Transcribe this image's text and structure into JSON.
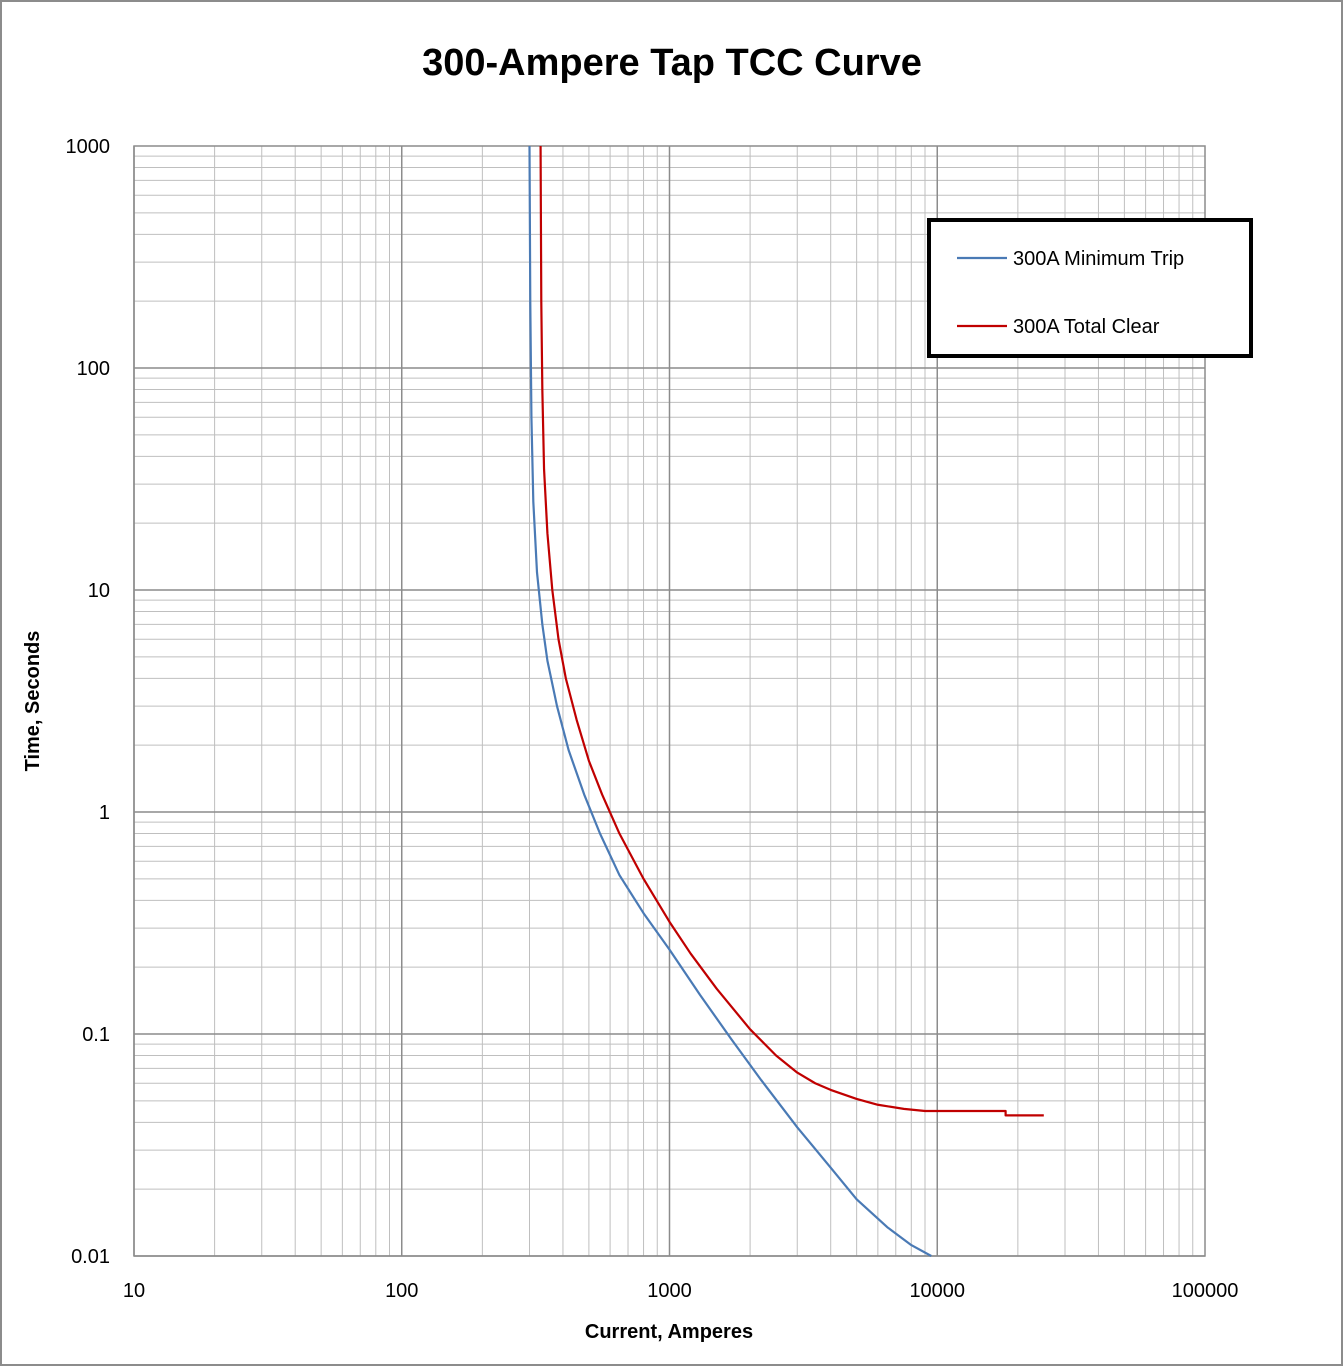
{
  "chart_data": {
    "type": "line",
    "title": "300-Ampere Tap TCC Curve",
    "xlabel": "Current, Amperes",
    "ylabel": "Time, Seconds",
    "xscale": "log",
    "yscale": "log",
    "xlim": [
      10,
      100000
    ],
    "ylim": [
      0.01,
      1000
    ],
    "xticks": [
      "10",
      "100",
      "1000",
      "10000",
      "100000"
    ],
    "yticks": [
      "0.01",
      "0.1",
      "1",
      "10",
      "100",
      "1000"
    ],
    "grid": true,
    "legend_position": "top-right",
    "series": [
      {
        "name": "300A Minimum Trip",
        "color": "#4a7ab5",
        "x": [
          300,
          302,
          305,
          310,
          320,
          335,
          350,
          380,
          420,
          480,
          550,
          650,
          800,
          1000,
          1300,
          1700,
          2200,
          3000,
          4000,
          5000,
          6500,
          8000,
          9500
        ],
        "y": [
          1000,
          200,
          60,
          25,
          12,
          7,
          4.8,
          3.0,
          1.9,
          1.2,
          0.8,
          0.52,
          0.35,
          0.24,
          0.15,
          0.095,
          0.062,
          0.038,
          0.025,
          0.018,
          0.0135,
          0.0112,
          0.01
        ]
      },
      {
        "name": "300A Total Clear",
        "color": "#c00000",
        "x": [
          330,
          332,
          335,
          340,
          350,
          365,
          385,
          410,
          450,
          500,
          560,
          650,
          800,
          1000,
          1200,
          1500,
          2000,
          2500,
          3000,
          3500,
          4000,
          5000,
          6000,
          7500,
          9000,
          10000,
          12000,
          15000,
          18000,
          18000,
          22000,
          25000
        ],
        "y": [
          1000,
          200,
          80,
          35,
          18,
          10,
          6,
          4,
          2.6,
          1.7,
          1.2,
          0.8,
          0.5,
          0.32,
          0.23,
          0.16,
          0.105,
          0.08,
          0.067,
          0.06,
          0.056,
          0.051,
          0.048,
          0.046,
          0.045,
          0.045,
          0.045,
          0.045,
          0.045,
          0.043,
          0.043,
          0.043
        ]
      }
    ]
  }
}
